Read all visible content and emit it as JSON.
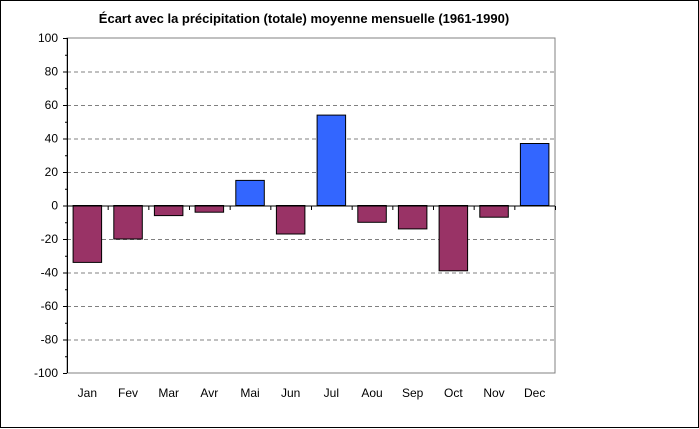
{
  "chart_data": {
    "type": "bar",
    "title": "Écart avec la précipitation (totale) moyenne mensuelle (1961-1990)",
    "xlabel": "",
    "ylabel": "",
    "categories": [
      "Jan",
      "Fev",
      "Mar",
      "Avr",
      "Mai",
      "Jun",
      "Jul",
      "Aou",
      "Sep",
      "Oct",
      "Nov",
      "Dec"
    ],
    "values": [
      -34,
      -20,
      -6,
      -4,
      15,
      -17,
      54,
      -10,
      -14,
      -39,
      -7,
      37
    ],
    "ylim": [
      -100,
      100
    ],
    "yticks": [
      100,
      80,
      60,
      40,
      20,
      0,
      -20,
      -40,
      -60,
      -80,
      -100
    ],
    "grid": true,
    "legend": "none",
    "colors": {
      "positive": "#3366FF",
      "negative": "#993366",
      "grid": "#808080",
      "plot_background": "#FFFFFF"
    }
  }
}
